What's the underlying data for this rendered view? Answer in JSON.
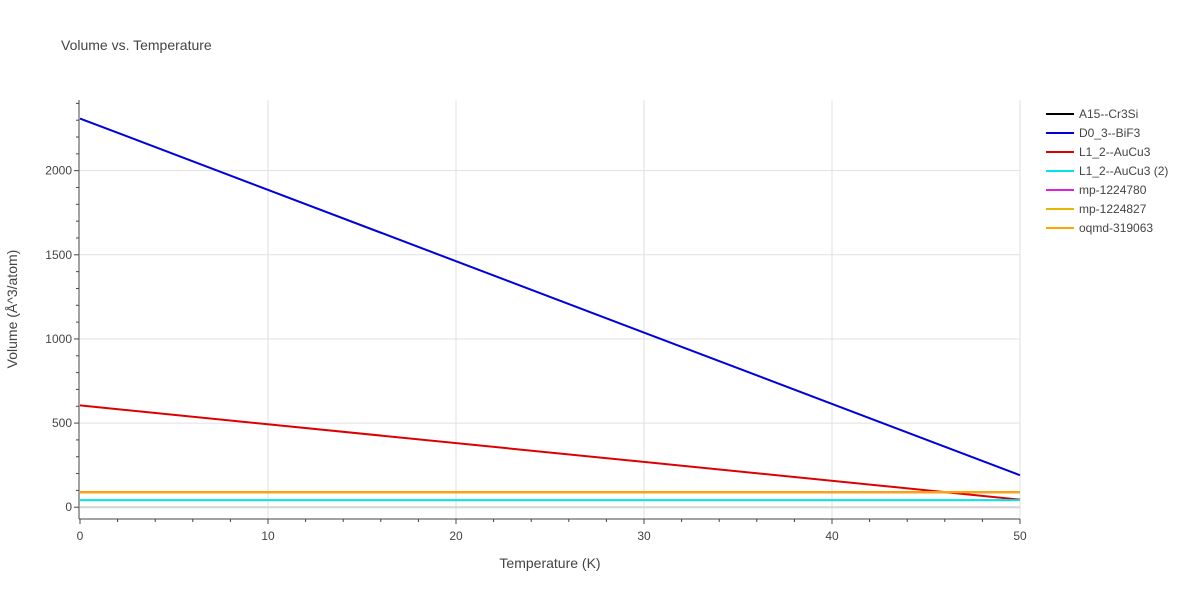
{
  "chart_data": {
    "type": "line",
    "title": "Volume vs. Temperature",
    "xlabel": "Temperature (K)",
    "ylabel": "Volume (Å^3/atom)",
    "xlim": [
      0,
      50
    ],
    "ylim": [
      -70,
      2420
    ],
    "x_ticks": [
      "0",
      "10",
      "20",
      "30",
      "40",
      "50"
    ],
    "y_ticks": [
      "0",
      "500",
      "1000",
      "1500",
      "2000"
    ],
    "grid": true,
    "legend_position": "top-right",
    "series": [
      {
        "name": "A15--Cr3Si",
        "color": "#000000",
        "x": [
          0,
          50
        ],
        "y": [
          90,
          90
        ]
      },
      {
        "name": "D0_3--BiF3",
        "color": "#0000dd",
        "x": [
          0,
          50
        ],
        "y": [
          2310,
          190
        ]
      },
      {
        "name": "L1_2--AuCu3",
        "color": "#dd0000",
        "x": [
          0,
          50
        ],
        "y": [
          605,
          45
        ]
      },
      {
        "name": "L1_2--AuCu3 (2)",
        "color": "#00e5ee",
        "x": [
          0,
          50
        ],
        "y": [
          42,
          42
        ]
      },
      {
        "name": "mp-1224780",
        "color": "#dd22dd",
        "x": [
          0,
          50
        ],
        "y": [
          90,
          90
        ]
      },
      {
        "name": "mp-1224827",
        "color": "#e6b800",
        "x": [
          0,
          50
        ],
        "y": [
          90,
          90
        ]
      },
      {
        "name": "oqmd-319063",
        "color": "#ffa500",
        "x": [
          0,
          50
        ],
        "y": [
          90,
          90
        ]
      }
    ]
  }
}
